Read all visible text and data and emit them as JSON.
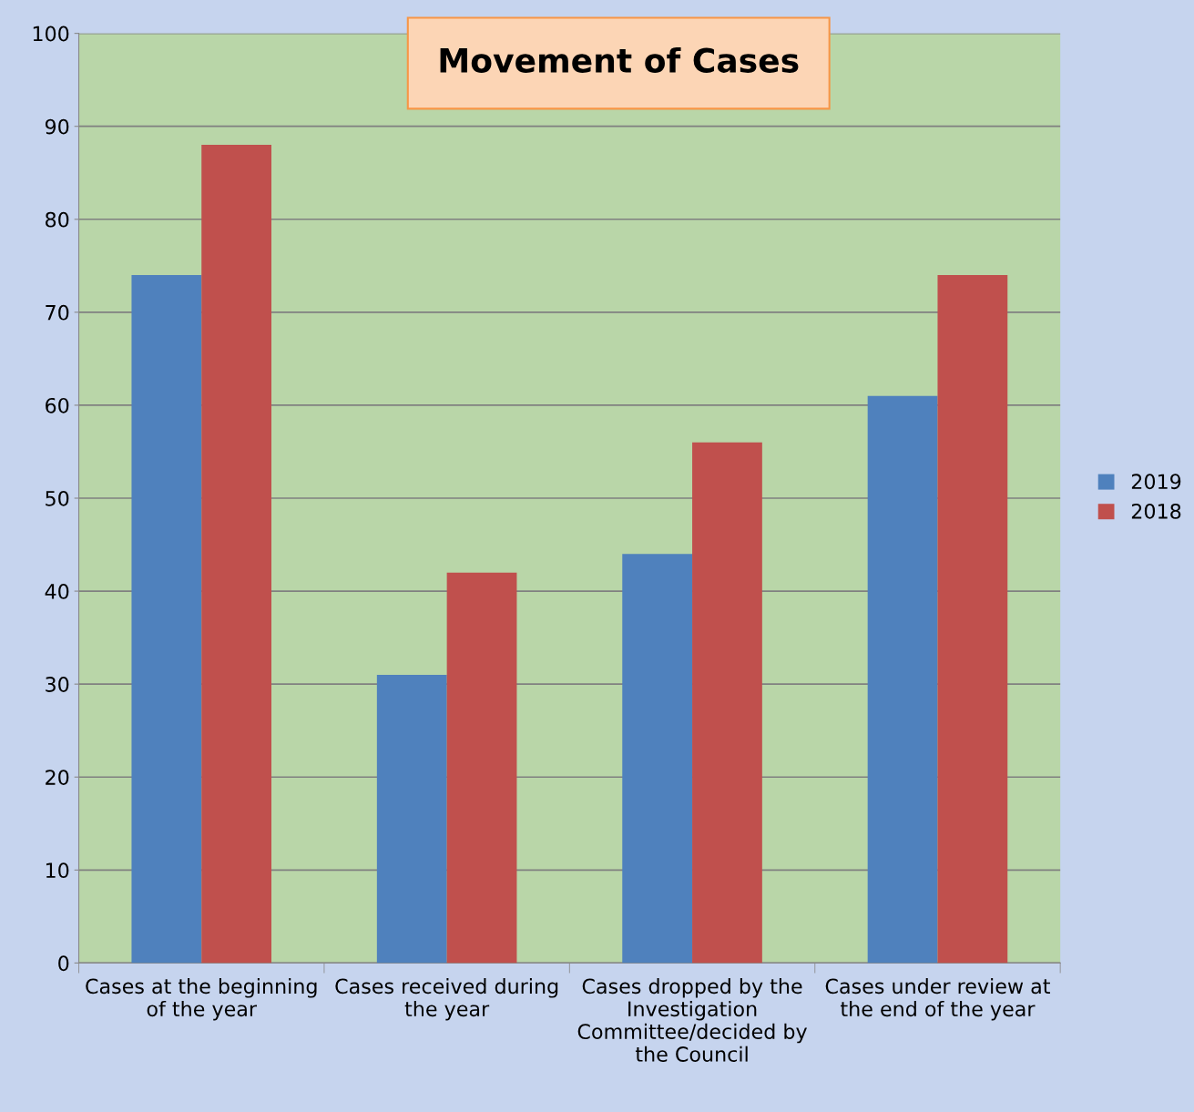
{
  "chart_data": {
    "type": "bar",
    "title": "Movement of Cases",
    "categories": [
      "Cases at the beginning\nof the year",
      "Cases received during\nthe year",
      "Cases dropped by the\nInvestigation\nCommittee/decided by\nthe Council",
      "Cases under review at\nthe end of the year"
    ],
    "series": [
      {
        "name": "2019",
        "color": "#4f81bd",
        "values": [
          74,
          31,
          44,
          61
        ]
      },
      {
        "name": "2018",
        "color": "#c0504d",
        "values": [
          88,
          42,
          56,
          74
        ]
      }
    ],
    "ylim": [
      0,
      100
    ],
    "yticks": [
      0,
      10,
      20,
      30,
      40,
      50,
      60,
      70,
      80,
      90,
      100
    ],
    "grid": "y",
    "legend": "right"
  }
}
